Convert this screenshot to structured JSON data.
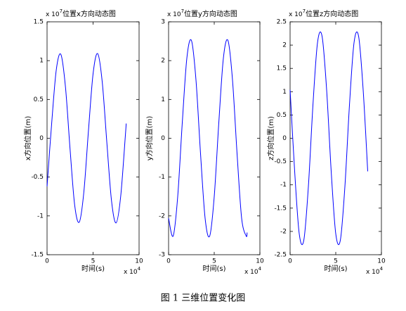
{
  "chart_data": [
    {
      "type": "line",
      "title": "位置x方向动态图",
      "xlabel": "时间(s)",
      "ylabel": "x方向位置(m)",
      "x_multiplier": {
        "base": "x 10",
        "exponent": "4"
      },
      "y_multiplier": {
        "base": "x 10",
        "exponent": "7"
      },
      "x": [
        0,
        0.5,
        1,
        1.5,
        2,
        2.5,
        3,
        3.5,
        4,
        4.5,
        5,
        5.5,
        6,
        6.5,
        7,
        7.5,
        8,
        8.5,
        8.6
      ],
      "series": [
        {
          "color": "#0000ff",
          "values": [
            -0.62,
            0.19,
            0.88,
            1.08,
            0.66,
            -0.14,
            -0.86,
            -1.08,
            -0.69,
            0.1,
            0.83,
            1.09,
            0.72,
            -0.06,
            -0.8,
            -1.09,
            -0.75,
            0.02,
            0.19
          ]
        }
      ],
      "xlim": [
        0,
        10
      ],
      "xticks": [
        0,
        5,
        10
      ],
      "ylim": [
        -1.5,
        1.5
      ],
      "yticks": [
        -1.5,
        -1,
        -0.5,
        0,
        0.5,
        1,
        1.5
      ]
    },
    {
      "type": "line",
      "title": "位置y方向动态图",
      "xlabel": "时间(s)",
      "ylabel": "y方向位置(m)",
      "x_multiplier": {
        "base": "x 10",
        "exponent": "4"
      },
      "y_multiplier": {
        "base": "x 10",
        "exponent": "7"
      },
      "x": [
        0,
        0.5,
        1,
        1.5,
        2,
        2.5,
        3,
        3.5,
        4,
        4.5,
        5,
        5.5,
        6,
        6.5,
        7,
        7.5,
        8,
        8.5,
        8.6
      ],
      "series": [
        {
          "color": "#0000ff",
          "values": [
            -2.06,
            -2.52,
            -1.5,
            0.4,
            2.06,
            2.52,
            1.5,
            -0.4,
            -2.06,
            -2.52,
            -1.5,
            0.4,
            2.06,
            2.52,
            1.5,
            -0.4,
            -2.06,
            -2.52,
            -2.43
          ]
        }
      ],
      "xlim": [
        0,
        10
      ],
      "xticks": [
        0,
        5,
        10
      ],
      "ylim": [
        -3,
        3
      ],
      "yticks": [
        -3,
        -2,
        -1,
        0,
        1,
        2,
        3
      ]
    },
    {
      "type": "line",
      "title": "位置z方向动态图",
      "xlabel": "时间(s)",
      "ylabel": "z方向位置(m)",
      "x_multiplier": {
        "base": "x 10",
        "exponent": "4"
      },
      "y_multiplier": {
        "base": "x 10",
        "exponent": "7"
      },
      "x": [
        0,
        0.5,
        1,
        1.5,
        2,
        2.5,
        3,
        3.5,
        4,
        4.5,
        5,
        5.5,
        6,
        6.5,
        7,
        7.5,
        8,
        8.5
      ],
      "series": [
        {
          "color": "#0000ff",
          "values": [
            1.04,
            -0.71,
            -2.05,
            -2.19,
            -1.04,
            0.71,
            2.05,
            2.19,
            1.04,
            -0.71,
            -2.05,
            -2.19,
            -1.04,
            0.71,
            2.05,
            2.19,
            1.04,
            -0.71
          ]
        }
      ],
      "xlim": [
        0,
        10
      ],
      "xticks": [
        0,
        5,
        10
      ],
      "ylim": [
        -2.5,
        2.5
      ],
      "yticks": [
        -2.5,
        -2,
        -1.5,
        -1,
        -0.5,
        0,
        0.5,
        1,
        1.5,
        2,
        2.5
      ]
    }
  ],
  "caption": "图 1 三维位置变化图"
}
